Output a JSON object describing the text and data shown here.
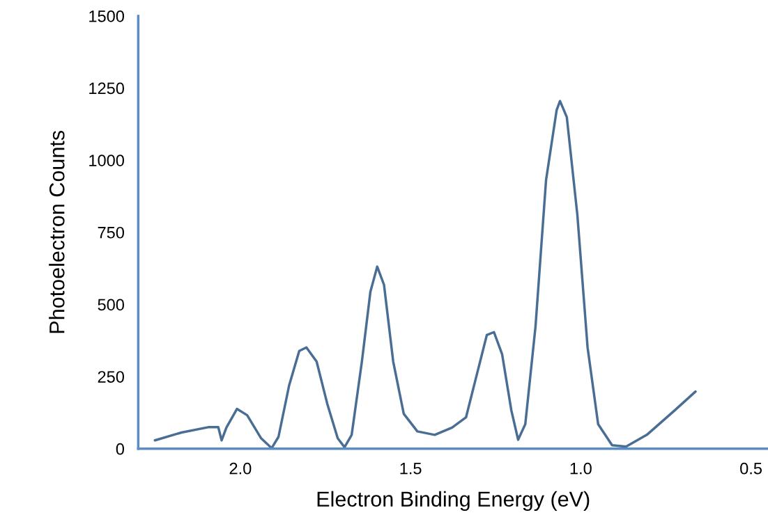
{
  "chart_data": {
    "type": "line",
    "xlabel": "Electron Binding Energy (eV)",
    "ylabel": "Photoelectron Counts",
    "xlim": [
      2.3,
      0.45
    ],
    "xticks": [
      {
        "value": 2.0,
        "label": "2.0"
      },
      {
        "value": 1.5,
        "label": "1.5"
      },
      {
        "value": 1.0,
        "label": "1.0"
      },
      {
        "value": 0.5,
        "label": "0.5"
      }
    ],
    "ylim": [
      0,
      1500
    ],
    "yticks": [
      0,
      250,
      500,
      750,
      1000,
      1250,
      1500
    ],
    "grid": false,
    "legend": false,
    "marker": "none",
    "line_style": "solid",
    "series": [
      {
        "color": "#4a6d94",
        "x": [
          2.251,
          2.173,
          2.092,
          2.065,
          2.055,
          2.041,
          2.01,
          1.98,
          1.939,
          1.908,
          1.888,
          1.857,
          1.827,
          1.806,
          1.776,
          1.745,
          1.714,
          1.694,
          1.673,
          1.643,
          1.618,
          1.598,
          1.578,
          1.551,
          1.52,
          1.48,
          1.429,
          1.378,
          1.337,
          1.306,
          1.276,
          1.255,
          1.231,
          1.204,
          1.184,
          1.163,
          1.133,
          1.102,
          1.071,
          1.061,
          1.041,
          1.01,
          0.98,
          0.949,
          0.908,
          0.867,
          0.806,
          0.724,
          0.663
        ],
        "values": [
          29,
          56,
          75,
          75,
          29,
          73,
          138,
          116,
          36,
          2,
          41,
          218,
          339,
          351,
          302,
          157,
          36,
          5,
          48,
          302,
          544,
          631,
          568,
          302,
          121,
          60,
          48,
          73,
          109,
          254,
          394,
          404,
          327,
          133,
          31,
          85,
          423,
          931,
          1173,
          1205,
          1149,
          810,
          351,
          85,
          12,
          7,
          48,
          133,
          198
        ]
      }
    ]
  }
}
